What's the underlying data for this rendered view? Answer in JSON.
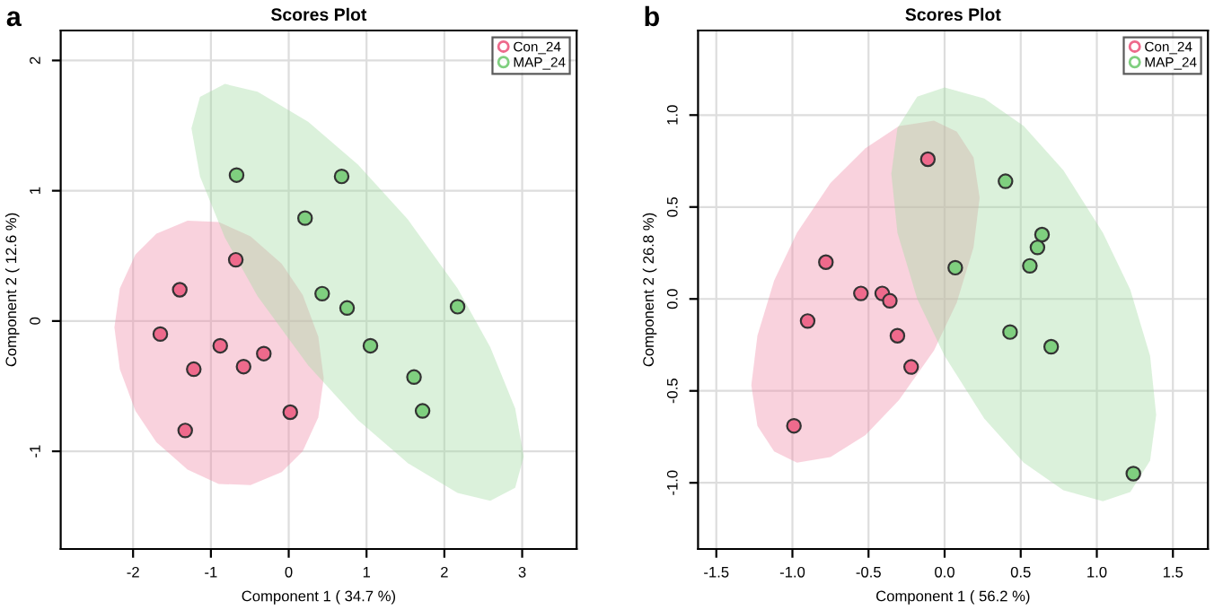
{
  "chart_data": [
    {
      "type": "scatter",
      "title": "Scores Plot",
      "xlabel": "Component 1 ( 34.7 %)",
      "ylabel": "Component 2 ( 12.6 %)",
      "annotations": [
        "a"
      ],
      "xlim": [
        -2.93,
        3.7
      ],
      "ylim": [
        -1.75,
        2.23
      ],
      "xticks": [
        -2,
        -1,
        0,
        1,
        2,
        3
      ],
      "yticks": [
        -1,
        0,
        1,
        2
      ],
      "grid": true,
      "legend": "top right",
      "series": [
        {
          "type": "area",
          "marker": "none",
          "color": "#ef8fab",
          "x": [
            -2.24,
            -2.17,
            -1.97,
            -1.7,
            -1.3,
            -0.9,
            -0.49,
            -0.09,
            0.18,
            0.38,
            0.45,
            0.38,
            0.18,
            -0.09,
            -0.49,
            -0.9,
            -1.3,
            -1.7,
            -1.97,
            -2.17
          ],
          "values": [
            -0.05,
            0.25,
            0.51,
            0.67,
            0.77,
            0.76,
            0.65,
            0.44,
            0.2,
            -0.12,
            -0.44,
            -0.74,
            -1.0,
            -1.16,
            -1.26,
            -1.25,
            -1.14,
            -0.93,
            -0.69,
            -0.37
          ]
        },
        {
          "type": "area",
          "marker": "none",
          "color": "#a6dba6",
          "x": [
            -1.25,
            -1.14,
            -0.82,
            -0.4,
            0.25,
            0.89,
            1.53,
            2.17,
            2.59,
            2.91,
            3.02,
            2.91,
            2.59,
            2.17,
            1.53,
            0.89,
            0.25,
            -0.4,
            -0.82,
            -1.14
          ],
          "values": [
            1.48,
            1.72,
            1.82,
            1.76,
            1.53,
            1.2,
            0.78,
            0.25,
            -0.2,
            -0.67,
            -1.04,
            -1.28,
            -1.38,
            -1.32,
            -1.09,
            -0.76,
            -0.34,
            0.19,
            0.64,
            1.11
          ]
        },
        {
          "marker": "circle",
          "name": "Con_24",
          "color": "#ee6a8c",
          "x": [
            -1.65,
            -1.4,
            -1.22,
            -1.33,
            -0.88,
            -0.68,
            -0.58,
            -0.32,
            0.02
          ],
          "values": [
            -0.1,
            0.24,
            -0.37,
            -0.84,
            -0.19,
            0.47,
            -0.35,
            -0.25,
            -0.7
          ]
        },
        {
          "marker": "circle",
          "name": "MAP_24",
          "color": "#7fcf7f",
          "x": [
            -0.67,
            0.68,
            0.21,
            0.43,
            0.75,
            2.17,
            1.05,
            1.61,
            1.72
          ],
          "values": [
            1.12,
            1.11,
            0.79,
            0.21,
            0.1,
            0.11,
            -0.19,
            -0.43,
            -0.69
          ]
        }
      ]
    },
    {
      "type": "scatter",
      "title": "Scores Plot",
      "xlabel": "Component 1 ( 56.2 %)",
      "ylabel": "Component 2 ( 26.8 %)",
      "annotations": [
        "b"
      ],
      "xlim": [
        -1.62,
        1.73
      ],
      "ylim": [
        -1.36,
        1.46
      ],
      "xticks": [
        -1.5,
        {
          "value": -1,
          "label": "-1.0"
        },
        -0.5,
        {
          "value": 0,
          "label": "0.0"
        },
        0.5,
        {
          "value": 1,
          "label": "1.0"
        },
        1.5
      ],
      "yticks": [
        {
          "value": -1,
          "label": "-1.0"
        },
        -0.5,
        {
          "value": 0,
          "label": "0.0"
        },
        0.5,
        {
          "value": 1,
          "label": "1.0"
        }
      ],
      "grid": true,
      "legend": "top right",
      "series": [
        {
          "type": "area",
          "marker": "none",
          "color": "#ef8fab",
          "x": [
            -1.27,
            -1.23,
            -1.12,
            -0.97,
            -0.75,
            -0.52,
            -0.3,
            -0.07,
            0.08,
            0.19,
            0.23,
            0.19,
            0.08,
            -0.07,
            -0.3,
            -0.52,
            -0.75,
            -0.97,
            -1.12,
            -1.23
          ],
          "values": [
            -0.47,
            -0.2,
            0.1,
            0.36,
            0.63,
            0.82,
            0.94,
            0.97,
            0.91,
            0.77,
            0.55,
            0.28,
            -0.02,
            -0.28,
            -0.55,
            -0.74,
            -0.86,
            -0.89,
            -0.83,
            -0.69
          ]
        },
        {
          "type": "area",
          "marker": "none",
          "color": "#a6dba6",
          "x": [
            -0.35,
            -0.31,
            -0.18,
            0.0,
            0.26,
            0.52,
            0.78,
            1.04,
            1.22,
            1.35,
            1.39,
            1.35,
            1.22,
            1.04,
            0.78,
            0.52,
            0.26,
            0.0,
            -0.18,
            -0.31
          ],
          "values": [
            0.68,
            0.93,
            1.1,
            1.15,
            1.09,
            0.94,
            0.7,
            0.36,
            0.05,
            -0.31,
            -0.63,
            -0.88,
            -1.05,
            -1.1,
            -1.04,
            -0.89,
            -0.65,
            -0.31,
            0.0,
            0.36
          ]
        },
        {
          "marker": "circle",
          "name": "Con_24",
          "color": "#ee6a8c",
          "x": [
            -0.11,
            -0.78,
            -0.55,
            -0.41,
            -0.36,
            -0.9,
            -0.31,
            -0.22,
            -0.99
          ],
          "values": [
            0.76,
            0.2,
            0.03,
            0.03,
            -0.01,
            -0.12,
            -0.2,
            -0.37,
            -0.69
          ]
        },
        {
          "marker": "circle",
          "name": "MAP_24",
          "color": "#7fcf7f",
          "x": [
            0.4,
            0.64,
            0.61,
            0.56,
            0.07,
            0.43,
            0.7,
            1.24
          ],
          "values": [
            0.64,
            0.35,
            0.28,
            0.18,
            0.17,
            -0.18,
            -0.26,
            -0.95
          ]
        }
      ]
    }
  ]
}
